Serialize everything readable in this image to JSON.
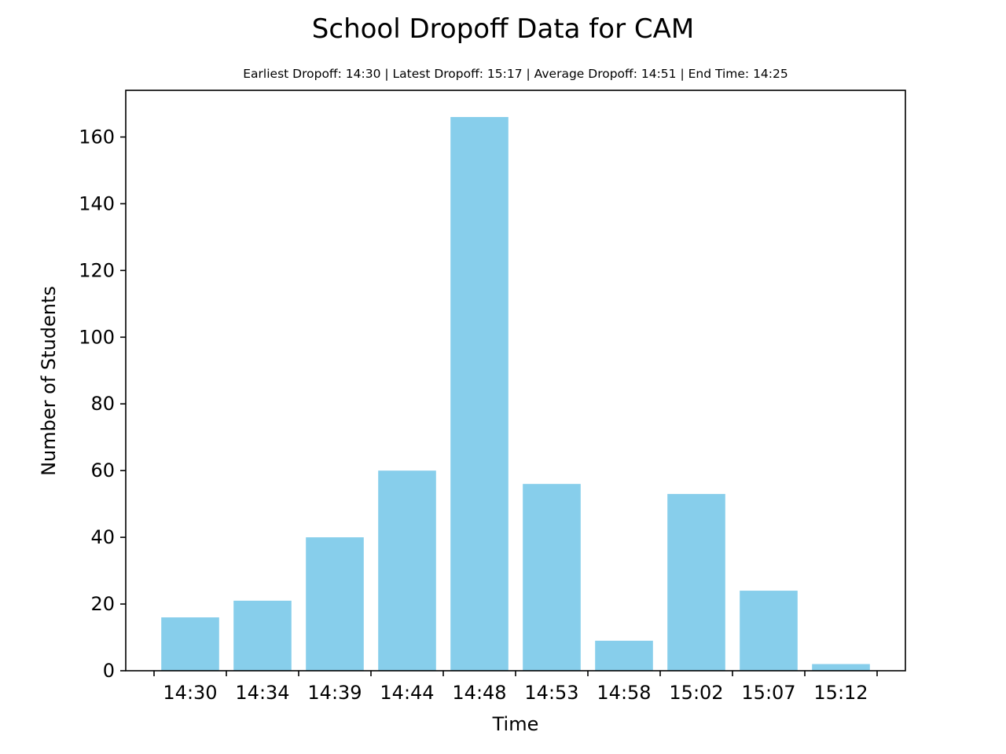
{
  "chart_data": {
    "type": "bar",
    "title": "School Dropoff Data for CAM",
    "subtitle": "Earliest Dropoff: 14:30 | Latest Dropoff: 15:17 | Average Dropoff: 14:51 | End Time: 14:25",
    "xlabel": "Time",
    "ylabel": "Number of Students",
    "categories": [
      "14:30",
      "14:34",
      "14:39",
      "14:44",
      "14:48",
      "14:53",
      "14:58",
      "15:02",
      "15:07",
      "15:12"
    ],
    "values": [
      16,
      21,
      40,
      60,
      166,
      56,
      9,
      53,
      24,
      2
    ],
    "ylim": [
      0,
      174
    ],
    "yticks": [
      0,
      20,
      40,
      60,
      80,
      100,
      120,
      140,
      160
    ],
    "grid": false,
    "bar_color": "#87ceeb"
  }
}
